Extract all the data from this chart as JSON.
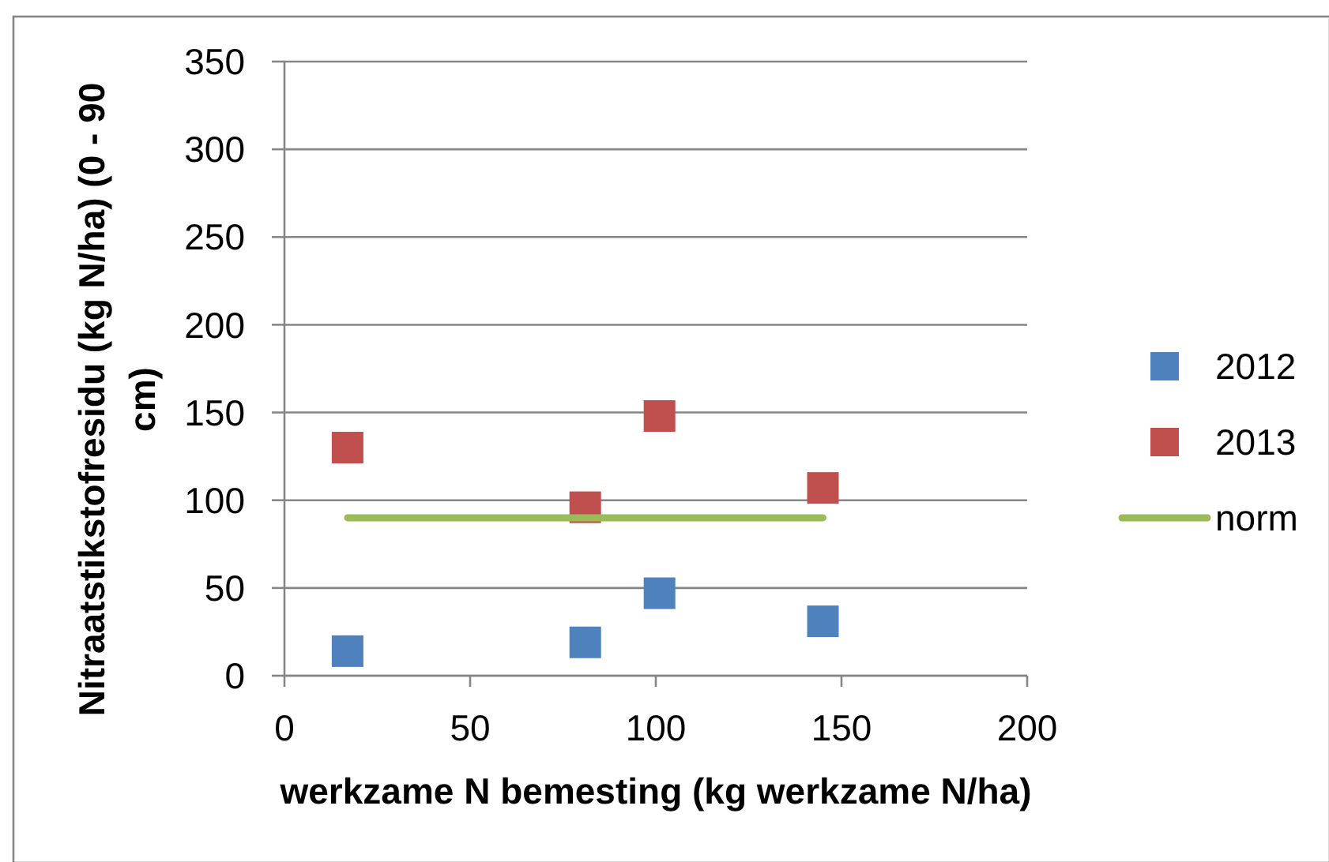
{
  "chart_data": {
    "type": "scatter",
    "xlabel": "werkzame N bemesting (kg werkzame N/ha)",
    "ylabel": "Nitraatstikstofresidu (kg N/ha) (0 - 90 cm)",
    "xlim": [
      0,
      200
    ],
    "xticks": [
      0,
      50,
      100,
      150,
      200
    ],
    "ylim": [
      0,
      350
    ],
    "yticks": [
      0,
      50,
      100,
      150,
      200,
      250,
      300,
      350
    ],
    "grid": "y",
    "legend": "right",
    "series": [
      {
        "name": "2012",
        "color": "#4f81bd",
        "marker": "square",
        "x": [
          17,
          81,
          101,
          145
        ],
        "values": [
          14,
          19,
          47,
          31
        ]
      },
      {
        "name": "2013",
        "color": "#c0504d",
        "marker": "square",
        "x": [
          17,
          81,
          101,
          145
        ],
        "values": [
          130,
          96,
          148,
          107
        ]
      },
      {
        "name": "norm",
        "type": "line",
        "color": "#9bbb59",
        "marker": "none",
        "line_style": "solid",
        "x": [
          17,
          145
        ],
        "values": [
          90,
          90
        ]
      }
    ]
  }
}
